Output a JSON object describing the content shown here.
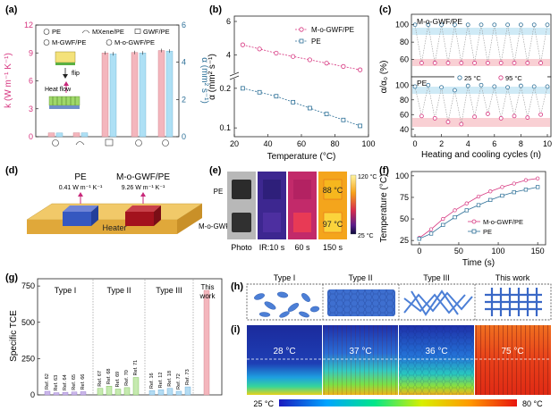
{
  "panels": {
    "a": "(a)",
    "b": "(b)",
    "c": "(c)",
    "d": "(d)",
    "e": "(e)",
    "f": "(f)",
    "g": "(g)",
    "h": "(h)",
    "i": "(i)"
  },
  "colors": {
    "pink": "#d6337e",
    "blue": "#2c6f97",
    "pink_fill": "#f4b6bd",
    "blue_fill": "#aee0f5",
    "band_blue": "#cfeaf6",
    "band_pink": "#f9d0d4"
  },
  "chart_data": [
    {
      "panel": "a",
      "type": "bar",
      "legend": [
        "PE",
        "MXene/PE",
        "GWF/PE",
        "M-GWF/PE",
        "M-o-GWF/PE"
      ],
      "ylabel_left": "k (W m⁻¹ K⁻¹)",
      "ylabel_right": "α (mm² s⁻¹)",
      "ylim_left": [
        0,
        12
      ],
      "ylim_right": [
        0,
        6
      ],
      "yticks_left": [
        "0",
        "3",
        "6",
        "9",
        "12"
      ],
      "yticks_right": [
        "0",
        "2",
        "4",
        "6"
      ],
      "series": [
        {
          "name": "k",
          "values": [
            0.41,
            0.42,
            9.0,
            9.05,
            9.26
          ]
        },
        {
          "name": "α",
          "values": [
            0.2,
            0.21,
            4.45,
            4.5,
            4.6
          ]
        }
      ],
      "inset": {
        "flip": "flip",
        "heat_flow": "Heat flow"
      }
    },
    {
      "panel": "b",
      "type": "line",
      "xlabel": "Temperature (°C)",
      "ylabel": "α (mm² s⁻¹)",
      "xlim": [
        20,
        100
      ],
      "xticks": [
        "20",
        "40",
        "60",
        "80",
        "100"
      ],
      "yticks_upper": [
        "4",
        "6"
      ],
      "yticks_lower": [
        "0.1",
        "0.2"
      ],
      "x": [
        25,
        35,
        45,
        55,
        65,
        75,
        85,
        95
      ],
      "series": [
        {
          "name": "M-o-GWF/PE",
          "values": [
            4.6,
            4.35,
            4.1,
            3.9,
            3.7,
            3.5,
            3.3,
            3.1
          ]
        },
        {
          "name": "PE",
          "values": [
            0.2,
            0.19,
            0.18,
            0.165,
            0.15,
            0.135,
            0.12,
            0.105
          ]
        }
      ]
    },
    {
      "panel": "c",
      "type": "scatter",
      "xlabel": "Heating and cooling cycles (n)",
      "ylabel": "α/α₀ (%)",
      "xlim": [
        0,
        10
      ],
      "xticks": [
        "0",
        "2",
        "4",
        "6",
        "8",
        "10"
      ],
      "yticks_upper": [
        "60",
        "80",
        "100"
      ],
      "yticks_lower": [
        "40",
        "60",
        "80",
        "100"
      ],
      "legend": [
        "25 °C",
        "95 °C"
      ],
      "upper_label": "M-o-GWF/PE",
      "lower_label": "PE",
      "upper_series": [
        {
          "name": "25 °C",
          "values": [
            100,
            100,
            100,
            100,
            100,
            100,
            100,
            100,
            100,
            100,
            100
          ]
        },
        {
          "name": "95 °C",
          "values": [
            56,
            56,
            56,
            56,
            56,
            56,
            56,
            56,
            56,
            56
          ]
        }
      ],
      "lower_series": [
        {
          "name": "25 °C",
          "values": [
            98,
            100,
            97,
            93,
            99,
            100,
            98,
            97,
            99,
            98,
            98
          ]
        },
        {
          "name": "95 °C",
          "values": [
            58,
            55,
            50,
            47,
            57,
            61,
            55,
            58,
            56,
            60
          ]
        }
      ]
    },
    {
      "panel": "f",
      "type": "line",
      "xlabel": "Time (s)",
      "ylabel": "Temperature (°C)",
      "xlim": [
        -10,
        160
      ],
      "ylim": [
        20,
        105
      ],
      "xticks": [
        "0",
        "50",
        "100",
        "150"
      ],
      "yticks": [
        "25",
        "50",
        "75",
        "100"
      ],
      "x": [
        0,
        15,
        30,
        45,
        60,
        75,
        90,
        105,
        120,
        135,
        150
      ],
      "series": [
        {
          "name": "M-o-GWF/PE",
          "values": [
            28,
            38,
            50,
            60,
            68,
            76,
            82,
            87,
            91,
            95,
            97
          ]
        },
        {
          "name": "PE",
          "values": [
            27,
            33,
            43,
            52,
            60,
            66,
            72,
            77,
            81,
            84,
            87
          ]
        }
      ]
    },
    {
      "panel": "g",
      "type": "bar",
      "ylabel": "Specific TCE",
      "ylim": [
        0,
        800
      ],
      "yticks": [
        "0",
        "250",
        "500",
        "750"
      ],
      "groups": [
        {
          "label": "Type I",
          "refs": [
            "Ref. 62",
            "Ref. 63",
            "Ref. 64",
            "Ref. 65",
            "Ref. 66"
          ],
          "values": [
            25,
            15,
            18,
            20,
            22
          ]
        },
        {
          "label": "Type II",
          "refs": [
            "Ref. 67",
            "Ref. 68",
            "Ref. 69",
            "Ref. 70",
            "Ref. 71"
          ],
          "values": [
            45,
            60,
            40,
            50,
            120
          ]
        },
        {
          "label": "Type III",
          "refs": [
            "Ref. 16",
            "Ref. 12",
            "Ref. 18",
            "Ref. 72",
            "Ref. 73"
          ],
          "values": [
            30,
            35,
            45,
            25,
            55
          ]
        },
        {
          "label": "This work",
          "refs": [],
          "values": [
            720
          ]
        }
      ]
    }
  ],
  "panel_d": {
    "pe_label": "PE",
    "mogwf_label": "M-o-GWF/PE",
    "pe_k": "0.41 W m⁻¹ K⁻¹",
    "mogwf_k": "9.26 W m⁻¹ K⁻¹",
    "heater": "Heater"
  },
  "panel_e": {
    "row_pe": "PE",
    "row_mogwf": "M-o-GWF/PE",
    "col_labels": [
      "Photo",
      "IR:10 s",
      "60 s",
      "150 s"
    ],
    "temp_88": "88 °C",
    "temp_97": "97 °C",
    "scale_max": "120 °C",
    "scale_min": "25 °C"
  },
  "panel_h": {
    "labels": [
      "Type I",
      "Type II",
      "Type III",
      "This work"
    ]
  },
  "panel_i": {
    "temps": [
      "28 °C",
      "37 °C",
      "36 °C",
      "75 °C"
    ],
    "scale_min": "25 °C",
    "scale_max": "80 °C"
  }
}
